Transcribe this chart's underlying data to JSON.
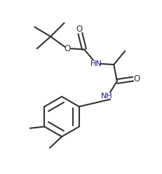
{
  "figsize": [
    2.31,
    2.48
  ],
  "dpi": 100,
  "bg_color": "#ffffff",
  "lc": "#333333",
  "tc": "#1a1a8c",
  "lw": 1.5,
  "xlim": [
    0,
    10
  ],
  "ylim": [
    0,
    10.7
  ]
}
